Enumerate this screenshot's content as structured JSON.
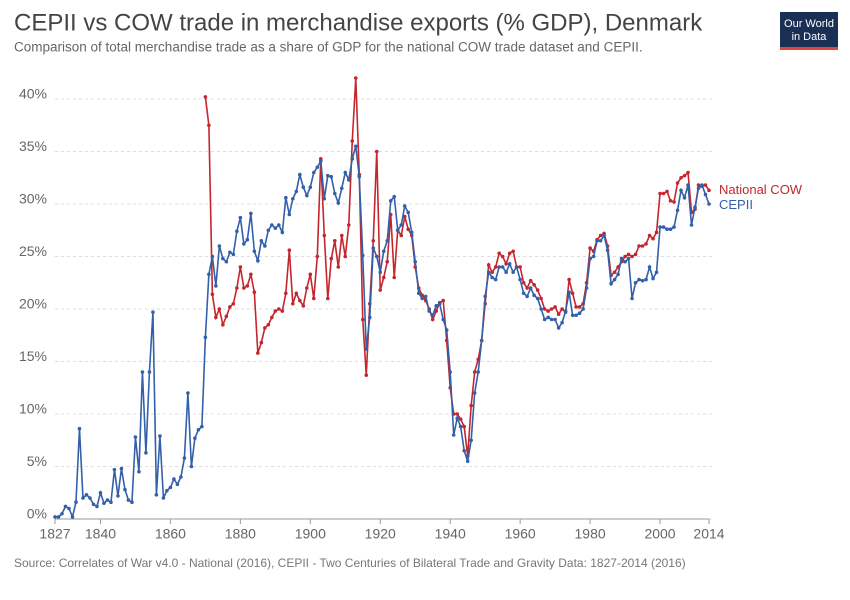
{
  "chart_data": {
    "type": "line",
    "title": "CEPII vs COW trade in merchandise exports (% GDP), Denmark",
    "subtitle": "Comparison of total merchandise trade as a share of GDP for the national COW trade dataset and CEPII.",
    "source": "Source: Correlates of War v4.0 - National (2016), CEPII - Two Centuries of Bilateral Trade and Gravity Data: 1827-2014 (2016)",
    "logo": [
      "Our World",
      "in Data"
    ],
    "xlim": [
      1827,
      2014
    ],
    "ylim": [
      0,
      42
    ],
    "xticks": [
      1827,
      1840,
      1860,
      1880,
      1900,
      1920,
      1940,
      1960,
      1980,
      2000,
      2014
    ],
    "yticks": [
      {
        "value": 0,
        "label": "0%"
      },
      {
        "value": 5,
        "label": "5%"
      },
      {
        "value": 10,
        "label": "10%"
      },
      {
        "value": 15,
        "label": "15%"
      },
      {
        "value": 20,
        "label": "20%"
      },
      {
        "value": 25,
        "label": "25%"
      },
      {
        "value": 30,
        "label": "30%"
      },
      {
        "value": 35,
        "label": "35%"
      },
      {
        "value": 40,
        "label": "40%"
      }
    ],
    "grid": true,
    "x": [
      1827,
      1828,
      1829,
      1830,
      1831,
      1832,
      1833,
      1834,
      1835,
      1836,
      1837,
      1838,
      1839,
      1840,
      1841,
      1842,
      1843,
      1844,
      1845,
      1846,
      1847,
      1848,
      1849,
      1850,
      1851,
      1852,
      1853,
      1854,
      1855,
      1856,
      1857,
      1858,
      1859,
      1860,
      1861,
      1862,
      1863,
      1864,
      1865,
      1866,
      1867,
      1868,
      1869,
      1870,
      1871,
      1872,
      1873,
      1874,
      1875,
      1876,
      1877,
      1878,
      1879,
      1880,
      1881,
      1882,
      1883,
      1884,
      1885,
      1886,
      1887,
      1888,
      1889,
      1890,
      1891,
      1892,
      1893,
      1894,
      1895,
      1896,
      1897,
      1898,
      1899,
      1900,
      1901,
      1902,
      1903,
      1904,
      1905,
      1906,
      1907,
      1908,
      1909,
      1910,
      1911,
      1912,
      1913,
      1914,
      1915,
      1916,
      1917,
      1918,
      1919,
      1920,
      1921,
      1922,
      1923,
      1924,
      1925,
      1926,
      1927,
      1928,
      1929,
      1930,
      1931,
      1932,
      1933,
      1934,
      1935,
      1936,
      1937,
      1938,
      1939,
      1940,
      1941,
      1942,
      1943,
      1944,
      1945,
      1946,
      1947,
      1948,
      1949,
      1950,
      1951,
      1952,
      1953,
      1954,
      1955,
      1956,
      1957,
      1958,
      1959,
      1960,
      1961,
      1962,
      1963,
      1964,
      1965,
      1966,
      1967,
      1968,
      1969,
      1970,
      1971,
      1972,
      1973,
      1974,
      1975,
      1976,
      1977,
      1978,
      1979,
      1980,
      1981,
      1982,
      1983,
      1984,
      1985,
      1986,
      1987,
      1988,
      1989,
      1990,
      1991,
      1992,
      1993,
      1994,
      1995,
      1996,
      1997,
      1998,
      1999,
      2000,
      2001,
      2002,
      2003,
      2004,
      2005,
      2006,
      2007,
      2008,
      2009,
      2010,
      2011,
      2012,
      2013,
      2014
    ],
    "series": [
      {
        "name": "National COW",
        "color": "#c4262e",
        "values": [
          null,
          null,
          null,
          null,
          null,
          null,
          null,
          null,
          null,
          null,
          null,
          null,
          null,
          null,
          null,
          null,
          null,
          null,
          null,
          null,
          null,
          null,
          null,
          null,
          null,
          null,
          null,
          null,
          null,
          null,
          null,
          null,
          null,
          null,
          null,
          null,
          null,
          null,
          null,
          null,
          null,
          null,
          null,
          40.2,
          37.5,
          21.4,
          19.2,
          20.0,
          18.5,
          19.3,
          20.2,
          20.5,
          22.0,
          24.0,
          22.0,
          22.2,
          23.3,
          21.6,
          15.8,
          16.8,
          18.2,
          18.5,
          19.2,
          19.8,
          20.0,
          19.8,
          21.5,
          25.6,
          20.5,
          21.5,
          20.8,
          20.3,
          22.0,
          23.3,
          21.0,
          25.0,
          34.3,
          27.0,
          21.0,
          24.8,
          26.5,
          24.0,
          27.0,
          25.0,
          28.0,
          36.0,
          42.0,
          32.8,
          19.0,
          13.7,
          20.5,
          26.5,
          35.0,
          21.8,
          23.0,
          24.5,
          29.0,
          23.0,
          27.5,
          27.0,
          28.8,
          27.6,
          27.0,
          24.0,
          22.0,
          21.3,
          20.8,
          20.0,
          19.0,
          19.8,
          20.6,
          20.8,
          17.0,
          12.5,
          10.0,
          10.0,
          9.5,
          8.8,
          6.0,
          10.8,
          14.0,
          15.2,
          17.0,
          20.5,
          24.2,
          23.5,
          24.0,
          25.3,
          25.0,
          24.3,
          25.3,
          25.5,
          24.0,
          24.0,
          22.5,
          22.0,
          22.7,
          22.3,
          21.8,
          21.0,
          20.0,
          19.8,
          20.0,
          20.2,
          19.5,
          20.0,
          19.7,
          22.8,
          21.5,
          20.2,
          20.2,
          20.5,
          22.5,
          25.8,
          25.5,
          26.6,
          27.0,
          27.2,
          26.0,
          23.2,
          23.5,
          24.0,
          24.5,
          25.0,
          25.2,
          25.0,
          25.2,
          26.0,
          26.0,
          26.2,
          27.0,
          26.7,
          27.3,
          31.0,
          31.0,
          31.2,
          30.3,
          30.2,
          32.0,
          32.5,
          32.7,
          33.0,
          29.2,
          29.5,
          31.8,
          31.7,
          31.8,
          31.3
        ]
      },
      {
        "name": "CEPII",
        "color": "#3360a9",
        "values": [
          0.2,
          0.2,
          0.5,
          1.2,
          1.0,
          0.2,
          1.6,
          8.6,
          2.0,
          2.3,
          2.0,
          1.4,
          1.2,
          2.5,
          1.5,
          1.8,
          1.6,
          4.7,
          2.2,
          4.8,
          2.8,
          1.8,
          1.6,
          7.8,
          4.5,
          14.0,
          6.3,
          14.0,
          19.7,
          2.3,
          7.9,
          2.0,
          2.7,
          3.0,
          3.8,
          3.3,
          4.0,
          5.8,
          12.0,
          5.0,
          7.7,
          8.5,
          8.8,
          17.3,
          23.3,
          25.0,
          22.2,
          26.0,
          24.8,
          24.5,
          25.4,
          25.2,
          27.4,
          28.7,
          26.2,
          26.6,
          29.1,
          25.5,
          24.6,
          26.5,
          26.0,
          27.5,
          28.0,
          27.7,
          28.0,
          27.3,
          30.6,
          29.0,
          30.5,
          31.2,
          32.8,
          31.6,
          30.8,
          31.6,
          33.0,
          33.5,
          34.1,
          30.5,
          32.7,
          32.6,
          31.0,
          30.1,
          31.5,
          33.0,
          32.3,
          34.3,
          35.5,
          32.6,
          25.1,
          16.2,
          19.2,
          25.8,
          25.0,
          23.5,
          25.5,
          26.5,
          30.3,
          30.7,
          27.5,
          28.0,
          29.8,
          29.2,
          27.3,
          24.5,
          21.5,
          21.0,
          21.2,
          19.8,
          19.4,
          20.3,
          20.5,
          19.0,
          18.0,
          14.0,
          8.0,
          9.6,
          8.8,
          6.5,
          5.5,
          7.5,
          12.0,
          14.0,
          17.0,
          21.2,
          23.5,
          23.0,
          22.8,
          24.0,
          24.0,
          23.5,
          24.3,
          23.5,
          24.0,
          22.8,
          21.5,
          21.2,
          22.0,
          21.3,
          21.0,
          20.0,
          19.0,
          19.2,
          19.0,
          19.0,
          18.2,
          18.7,
          19.8,
          21.6,
          19.4,
          19.4,
          19.6,
          20.0,
          22.0,
          24.8,
          25.0,
          26.5,
          26.5,
          27.0,
          25.6,
          22.4,
          22.8,
          23.3,
          24.8,
          24.5,
          24.8,
          21.0,
          22.5,
          22.8,
          22.7,
          22.8,
          24.0,
          22.9,
          23.5,
          27.8,
          27.8,
          27.6,
          27.6,
          27.8,
          29.4,
          31.3,
          30.6,
          31.8,
          28.0,
          29.7,
          31.5,
          31.8,
          30.9,
          30.0
        ]
      }
    ]
  }
}
